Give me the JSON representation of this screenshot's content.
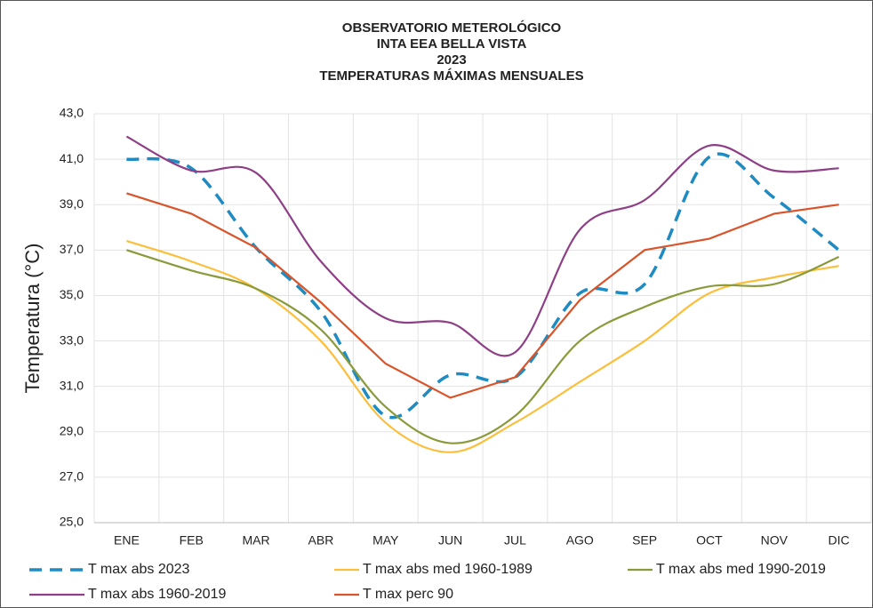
{
  "chart_data": {
    "type": "line",
    "title": [
      "OBSERVATORIO METEROLÓGICO",
      "INTA EEA BELLA VISTA",
      "2023",
      "TEMPERATURAS MÁXIMAS MENSUALES"
    ],
    "y_label": "Temperatura (°C)",
    "categories": [
      "ENE",
      "FEB",
      "MAR",
      "ABR",
      "MAY",
      "JUN",
      "JUL",
      "AGO",
      "SEP",
      "OCT",
      "NOV",
      "DIC"
    ],
    "ylim": [
      25,
      43
    ],
    "yticks": [
      {
        "value": 25,
        "label": "25,0"
      },
      {
        "value": 27,
        "label": "27,0"
      },
      {
        "value": 29,
        "label": "29,0"
      },
      {
        "value": 31,
        "label": "31,0"
      },
      {
        "value": 33,
        "label": "33,0"
      },
      {
        "value": 35,
        "label": "35,0"
      },
      {
        "value": 37,
        "label": "37,0"
      },
      {
        "value": 39,
        "label": "39,0"
      },
      {
        "value": 41,
        "label": "41,0"
      },
      {
        "value": 43,
        "label": "43,0"
      }
    ],
    "grid": true,
    "legend": "bottom",
    "series": [
      {
        "name": "T max abs 2023",
        "color": "#1e8bc3",
        "dashed": true,
        "smooth": true,
        "values": [
          41.0,
          40.6,
          37.1,
          34.3,
          29.7,
          31.5,
          31.4,
          35.1,
          35.5,
          41.1,
          39.3,
          37.0
        ]
      },
      {
        "name": "T max abs med 1960-1989",
        "color": "#fbbf3b",
        "dashed": false,
        "smooth": true,
        "values": [
          37.4,
          36.5,
          35.3,
          33.0,
          29.4,
          28.1,
          29.4,
          31.2,
          33.0,
          35.1,
          35.8,
          36.3
        ]
      },
      {
        "name": "T max abs med 1990-2019",
        "color": "#8a9a3a",
        "dashed": false,
        "smooth": true,
        "values": [
          37.0,
          36.1,
          35.3,
          33.5,
          30.1,
          28.5,
          29.7,
          33.0,
          34.5,
          35.4,
          35.5,
          36.7
        ]
      },
      {
        "name": "T max abs 1960-2019",
        "color": "#8e3f86",
        "dashed": false,
        "smooth": true,
        "values": [
          42.0,
          40.5,
          40.4,
          36.5,
          34.0,
          33.8,
          32.5,
          37.9,
          39.2,
          41.6,
          40.5,
          40.6
        ]
      },
      {
        "name": "T max perc 90",
        "color": "#d9542b",
        "dashed": false,
        "smooth": false,
        "values": [
          39.5,
          38.6,
          37.1,
          34.7,
          32.0,
          30.5,
          31.4,
          34.8,
          37.0,
          37.5,
          38.6,
          39.0
        ]
      }
    ]
  }
}
